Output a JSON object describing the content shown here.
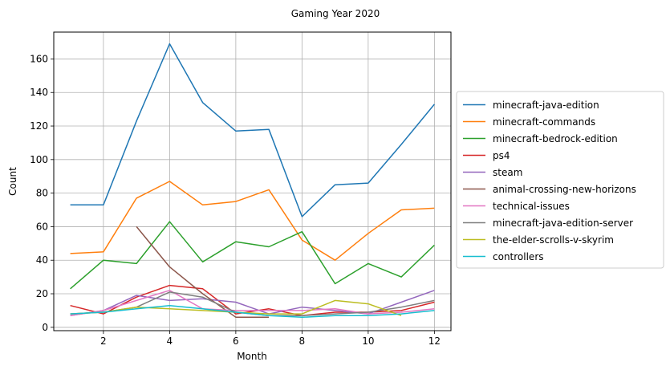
{
  "chart_data": {
    "type": "line",
    "title": "Gaming Year 2020",
    "xlabel": "Month",
    "ylabel": "Count",
    "xlim": [
      0.5,
      12.5
    ],
    "ylim": [
      -2,
      176
    ],
    "xticks": [
      2,
      4,
      6,
      8,
      10,
      12
    ],
    "yticks": [
      0,
      20,
      40,
      60,
      80,
      100,
      120,
      140,
      160
    ],
    "grid": true,
    "legend_position": "right",
    "series": [
      {
        "name": "minecraft-java-edition",
        "color": "#1f77b4",
        "x": [
          1,
          2,
          3,
          4,
          5,
          6,
          7,
          8,
          9,
          10,
          11,
          12
        ],
        "values": [
          73,
          73,
          123,
          169,
          134,
          117,
          118,
          66,
          85,
          86,
          109,
          133
        ]
      },
      {
        "name": "minecraft-commands",
        "color": "#ff7f0e",
        "x": [
          1,
          2,
          3,
          4,
          5,
          6,
          7,
          8,
          9,
          10,
          11,
          12
        ],
        "values": [
          44,
          45,
          77,
          87,
          73,
          75,
          82,
          52,
          40,
          56,
          70,
          71
        ]
      },
      {
        "name": "minecraft-bedrock-edition",
        "color": "#2ca02c",
        "x": [
          1,
          2,
          3,
          4,
          5,
          6,
          7,
          8,
          9,
          10,
          11,
          12
        ],
        "values": [
          23,
          40,
          38,
          63,
          39,
          51,
          48,
          57,
          26,
          38,
          30,
          49
        ]
      },
      {
        "name": "ps4",
        "color": "#d62728",
        "x": [
          1,
          2,
          3,
          4,
          5,
          6,
          7,
          8,
          9,
          10,
          11,
          12
        ],
        "values": [
          13,
          8,
          18,
          25,
          23,
          8,
          11,
          7,
          9,
          9,
          10,
          15
        ]
      },
      {
        "name": "steam",
        "color": "#9467bd",
        "x": [
          1,
          2,
          3,
          4,
          5,
          6,
          7,
          8,
          9,
          10,
          11,
          12
        ],
        "values": [
          7,
          10,
          19,
          16,
          17,
          15,
          8,
          12,
          10,
          8,
          15,
          22
        ]
      },
      {
        "name": "animal-crossing-new-horizons",
        "color": "#8c564b",
        "x": [
          3,
          4,
          5,
          6,
          7
        ],
        "values": [
          60,
          36,
          20,
          6,
          6
        ]
      },
      {
        "name": "technical-issues",
        "color": "#e377c2",
        "x": [
          1,
          2,
          3,
          4,
          5,
          6,
          7,
          8,
          9,
          10,
          11,
          12
        ],
        "values": [
          7,
          10,
          16,
          22,
          11,
          10,
          10,
          10,
          11,
          8,
          9,
          11
        ]
      },
      {
        "name": "minecraft-java-edition-server",
        "color": "#7f7f7f",
        "x": [
          1,
          2,
          3,
          4,
          5,
          6,
          7,
          8,
          9,
          10,
          11,
          12
        ],
        "values": [
          8,
          9,
          12,
          21,
          18,
          9,
          7,
          7,
          8,
          9,
          12,
          16
        ]
      },
      {
        "name": "the-elder-scrolls-v-skyrim",
        "color": "#bcbd22",
        "x": [
          1,
          2,
          3,
          4,
          5,
          6,
          7,
          8,
          9,
          10,
          11
        ],
        "values": [
          8,
          9,
          12,
          11,
          10,
          9,
          8,
          8,
          16,
          14,
          7
        ]
      },
      {
        "name": "controllers",
        "color": "#17becf",
        "x": [
          1,
          2,
          3,
          4,
          5,
          6,
          7,
          8,
          9,
          10,
          11,
          12
        ],
        "values": [
          8,
          9,
          11,
          13,
          11,
          9,
          7,
          6,
          7,
          7,
          8,
          10
        ]
      }
    ]
  }
}
